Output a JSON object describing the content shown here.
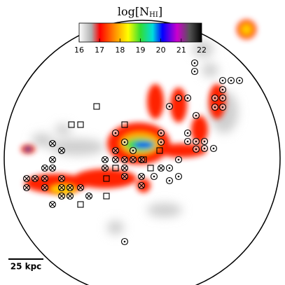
{
  "colorbar": {
    "label_prefix": "log[N",
    "label_subscript": "HI",
    "label_suffix": "]",
    "lim": [
      16,
      22
    ],
    "ticks": [
      16,
      17,
      18,
      19,
      20,
      21,
      22
    ]
  },
  "scale_bar": {
    "label": "25 kpc"
  }
}
